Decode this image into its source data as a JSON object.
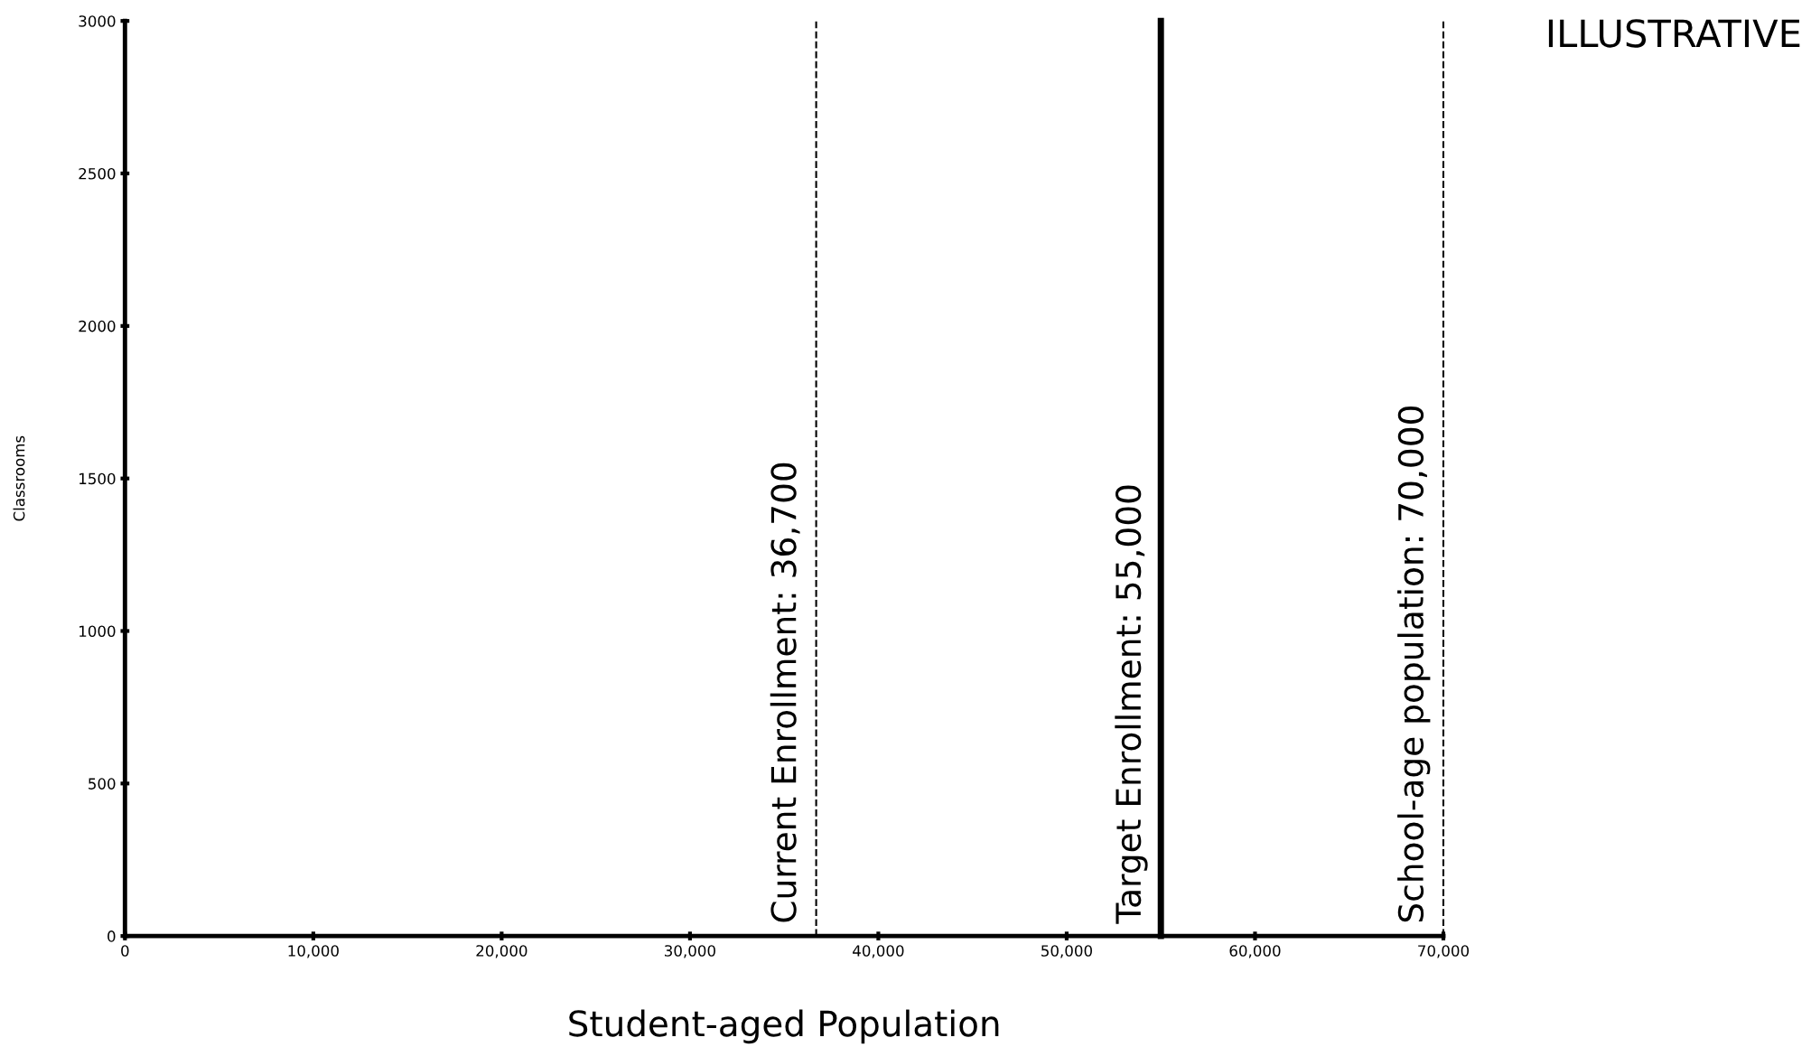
{
  "chart_data": {
    "type": "line",
    "xlabel": "Student-aged Population",
    "ylabel": "Classrooms",
    "xlim": [
      0,
      70000
    ],
    "ylim": [
      0,
      3000
    ],
    "xticks": [
      0,
      {
        "value": 10000,
        "label": "10,000"
      },
      {
        "value": 20000,
        "label": "20,000"
      },
      {
        "value": 30000,
        "label": "30,000"
      },
      {
        "value": 40000,
        "label": "40,000"
      },
      {
        "value": 50000,
        "label": "50,000"
      },
      {
        "value": 60000,
        "label": "60,000"
      },
      {
        "value": 70000,
        "label": "70,000"
      }
    ],
    "yticks": [
      0,
      500,
      1000,
      1500,
      2000,
      2500,
      3000
    ],
    "grid": false,
    "legend": false,
    "ref_lines": [
      {
        "axis": "x",
        "value": 36700,
        "label": "Current Enrollment: 36,700",
        "color": "#000000",
        "line_style": "dashed"
      },
      {
        "axis": "x",
        "value": 55000,
        "label": "Target Enrollment: 55,000",
        "color": "#000000",
        "line_style": "solid"
      },
      {
        "axis": "x",
        "value": 70000,
        "label": "School-age population: 70,000",
        "color": "#000000",
        "line_style": "dashed"
      }
    ],
    "annotations": [
      "ILLUSTRATIVE"
    ]
  }
}
